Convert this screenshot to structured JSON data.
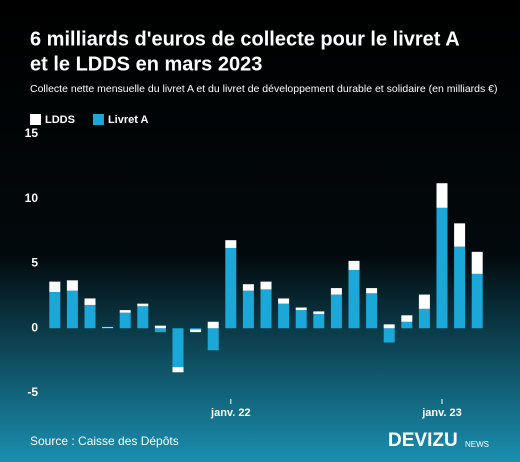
{
  "chart_data": {
    "type": "stacked_bar",
    "title": [
      "6 milliards d'euros de collecte pour le livret A",
      "et le LDDS en mars 2023"
    ],
    "subtitle": "Collecte nette mensuelle du livret A et du livret de développement durable et solidaire (en milliards €)",
    "categories": [
      null,
      null,
      null,
      null,
      null,
      null,
      null,
      null,
      null,
      null,
      "janv. 22",
      null,
      null,
      null,
      null,
      null,
      null,
      null,
      null,
      null,
      null,
      null,
      "janv. 23",
      null,
      null
    ],
    "series": [
      {
        "name": "LDDS",
        "color": "#ffffff",
        "values": [
          0.8,
          0.8,
          0.5,
          0.05,
          0.2,
          0.2,
          0.2,
          -0.4,
          -0.2,
          0.5,
          0.6,
          0.5,
          0.6,
          0.4,
          0.2,
          0.2,
          0.5,
          0.7,
          0.4,
          0.3,
          0.5,
          1.1,
          1.9,
          1.8,
          1.7
        ]
      },
      {
        "name": "Livret A",
        "color": "#1ba8d8",
        "values": [
          2.8,
          2.9,
          1.8,
          0.05,
          1.2,
          1.7,
          -0.3,
          -3.0,
          -0.1,
          -1.7,
          6.2,
          2.9,
          3.0,
          1.9,
          1.4,
          1.1,
          2.6,
          4.5,
          2.7,
          -1.1,
          0.5,
          1.5,
          9.3,
          6.3,
          4.2
        ]
      }
    ],
    "ylim": [
      -5,
      15
    ],
    "yticks": [
      -5,
      0,
      5,
      10,
      15
    ],
    "grid": false,
    "legend": "top-left",
    "source": "Source : Caisse des Dépôts",
    "logo": {
      "main": "DEVIZU",
      "sub": "NEWS"
    }
  }
}
